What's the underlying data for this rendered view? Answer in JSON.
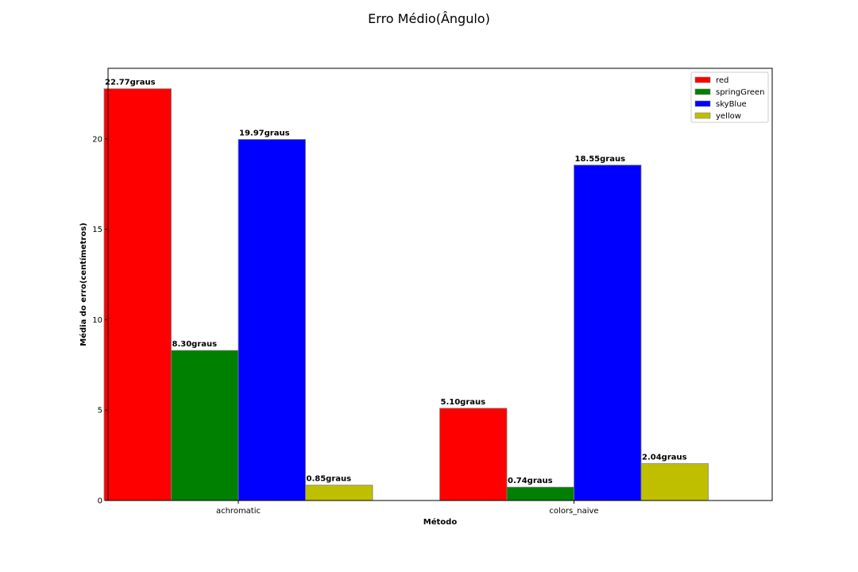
{
  "chart_data": {
    "type": "bar",
    "title": "Erro Médio(Ângulo)",
    "xlabel": "Método",
    "ylabel": "Média do erro(centímetros)",
    "categories": [
      "achromatic",
      "colors_naive"
    ],
    "value_suffix": "graus",
    "ylim": [
      0,
      23.9
    ],
    "yticks": [
      0,
      5,
      10,
      15,
      20
    ],
    "grid": false,
    "legend_position": "top-right",
    "series": [
      {
        "name": "red",
        "color": "#ff0000",
        "values": [
          22.77,
          5.1
        ]
      },
      {
        "name": "springGreen",
        "color": "#008000",
        "values": [
          8.3,
          0.74
        ]
      },
      {
        "name": "skyBlue",
        "color": "#0000ff",
        "values": [
          19.97,
          18.55
        ]
      },
      {
        "name": "yellow",
        "color": "#bfbf00",
        "values": [
          0.85,
          2.04
        ]
      }
    ]
  }
}
